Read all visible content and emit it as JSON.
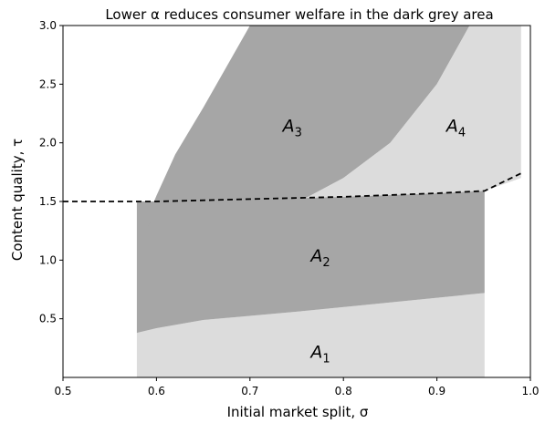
{
  "chart_data": {
    "type": "area",
    "title": "Lower α reduces consumer welfare in the dark grey area",
    "xlabel": "Initial market split, σ",
    "ylabel": "Content quality, τ",
    "xlim": [
      0.5,
      1.0
    ],
    "ylim": [
      0.0,
      3.0
    ],
    "xticks": [
      "0.5",
      "0.6",
      "0.7",
      "0.8",
      "0.9",
      "1.0"
    ],
    "yticks": [
      "0.5",
      "1.0",
      "1.5",
      "2.0",
      "2.5",
      "3.0"
    ],
    "grid": false,
    "colors": {
      "dark_region": "#a6a6a6",
      "light_region": "#dcdcdc",
      "boundary": "#000000"
    },
    "regions": [
      {
        "label": "A",
        "sub": "1",
        "shade": "light",
        "label_at": [
          0.765,
          0.22
        ],
        "polygon": [
          [
            0.579,
            0.0
          ],
          [
            0.951,
            0.0
          ],
          [
            0.951,
            0.72
          ],
          [
            0.85,
            0.64
          ],
          [
            0.75,
            0.56
          ],
          [
            0.65,
            0.49
          ],
          [
            0.6,
            0.42
          ],
          [
            0.579,
            0.38
          ]
        ]
      },
      {
        "label": "A",
        "sub": "2",
        "shade": "dark",
        "label_at": [
          0.765,
          1.04
        ],
        "polygon": [
          [
            0.579,
            0.38
          ],
          [
            0.6,
            0.42
          ],
          [
            0.65,
            0.49
          ],
          [
            0.75,
            0.56
          ],
          [
            0.85,
            0.64
          ],
          [
            0.951,
            0.72
          ],
          [
            0.951,
            1.59
          ],
          [
            0.9,
            1.57
          ],
          [
            0.8,
            1.54
          ],
          [
            0.7,
            1.52
          ],
          [
            0.6,
            1.5
          ],
          [
            0.5,
            1.5
          ],
          [
            0.579,
            1.5
          ],
          [
            0.579,
            1.15
          ]
        ]
      },
      {
        "label": "A",
        "sub": "3",
        "shade": "dark",
        "label_at": [
          0.735,
          2.15
        ],
        "polygon": [
          [
            0.579,
            1.15
          ],
          [
            0.6,
            1.4
          ],
          [
            0.608,
            1.5
          ],
          [
            0.76,
            1.53
          ],
          [
            0.8,
            1.7
          ],
          [
            0.85,
            2.0
          ],
          [
            0.9,
            2.5
          ],
          [
            0.935,
            3.0
          ],
          [
            0.7,
            3.0
          ],
          [
            0.65,
            2.3
          ],
          [
            0.62,
            1.9
          ],
          [
            0.6,
            1.55
          ]
        ]
      },
      {
        "label": "A",
        "sub": "4",
        "shade": "light",
        "label_at": [
          0.91,
          2.15
        ],
        "polygon": [
          [
            0.76,
            1.53
          ],
          [
            0.8,
            1.54
          ],
          [
            0.9,
            1.57
          ],
          [
            0.951,
            1.59
          ],
          [
            0.99,
            1.7
          ],
          [
            0.99,
            3.0
          ],
          [
            0.935,
            3.0
          ],
          [
            0.9,
            2.5
          ],
          [
            0.85,
            2.0
          ],
          [
            0.8,
            1.7
          ]
        ]
      }
    ],
    "boundary_line": {
      "style": "dashed",
      "points": [
        [
          0.5,
          1.5
        ],
        [
          0.6,
          1.5
        ],
        [
          0.7,
          1.52
        ],
        [
          0.8,
          1.54
        ],
        [
          0.9,
          1.57
        ],
        [
          0.951,
          1.59
        ],
        [
          0.99,
          1.74
        ]
      ]
    }
  }
}
